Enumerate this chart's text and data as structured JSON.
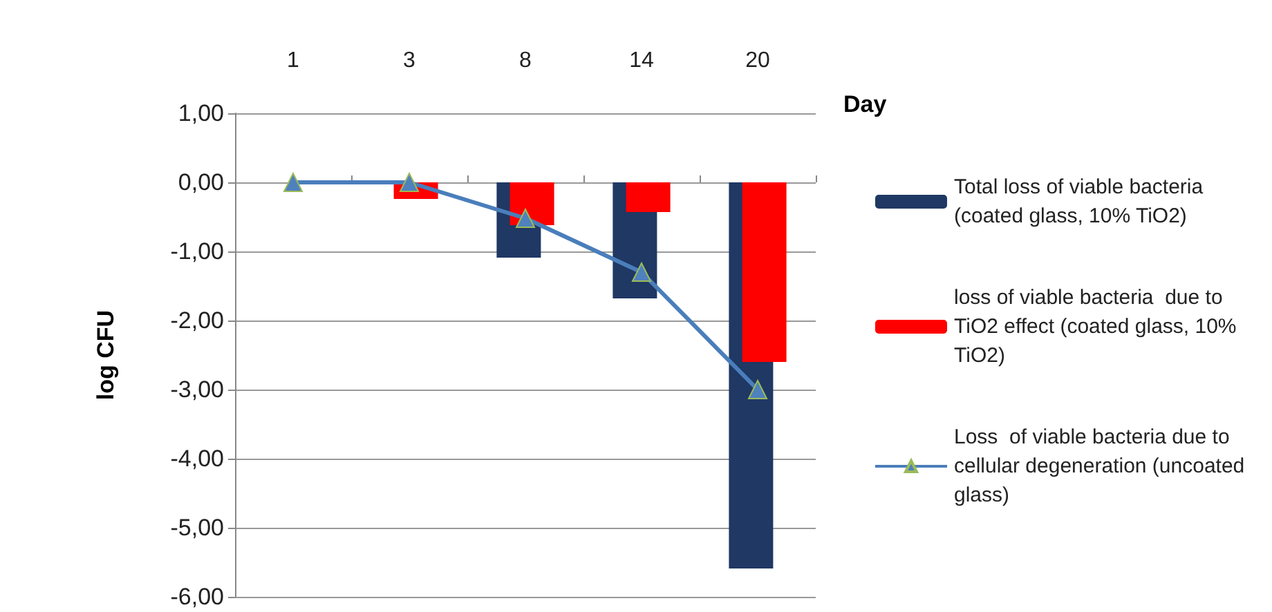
{
  "chart_data": {
    "type": "bar",
    "xlabel": "Day",
    "ylabel": "log CFU",
    "categories": [
      "1",
      "3",
      "8",
      "14",
      "20"
    ],
    "series": [
      {
        "name": "Total loss of viable bacteria (coated glass, 10% TiO2)",
        "color": "#1f3864",
        "values": [
          0,
          0,
          -1.09,
          -1.68,
          -5.59
        ]
      },
      {
        "name": "loss of viable bacteria  due to TiO2 effect (coated glass, 10% TiO2)",
        "color": "#ff0000",
        "values": [
          0,
          -0.24,
          -0.62,
          -0.43,
          -2.6
        ]
      },
      {
        "name": "Loss  of viable bacteria due to cellular degeneration (uncoated glass)",
        "type": "line",
        "color": "#4a7ebb",
        "marker": "triangle",
        "values": [
          0,
          0,
          -0.52,
          -1.3,
          -3.0
        ]
      }
    ],
    "ylim": [
      -6,
      1
    ],
    "yticks": [
      {
        "value": 1,
        "label": "1,00"
      },
      {
        "value": 0,
        "label": "0,00"
      },
      {
        "value": -1,
        "label": "-1,00"
      },
      {
        "value": -2,
        "label": "-2,00"
      },
      {
        "value": -3,
        "label": "-3,00"
      },
      {
        "value": -4,
        "label": "-4,00"
      },
      {
        "value": -5,
        "label": "-5,00"
      },
      {
        "value": -6,
        "label": "-6,00"
      }
    ],
    "grid": "y",
    "legend": "right"
  }
}
